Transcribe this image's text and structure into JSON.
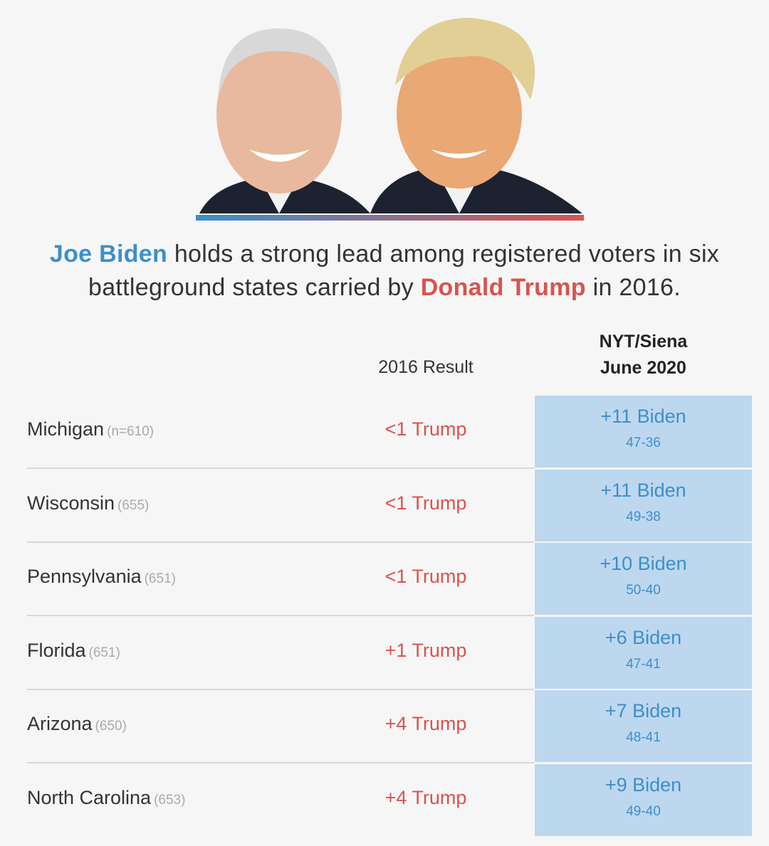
{
  "headline": {
    "biden": "Joe Biden",
    "text1": "holds a strong lead among registered voters in six battleground states carried by",
    "trump": "Donald Trump",
    "text2": "in 2016."
  },
  "table": {
    "columns": {
      "result": "2016 Result",
      "poll_line1": "NYT/Siena",
      "poll_line2": "June 2020"
    },
    "rows": [
      {
        "state": "Michigan",
        "sample": "(n=610)",
        "result": "<1 Trump",
        "poll": "+11 Biden",
        "detail": "47-36"
      },
      {
        "state": "Wisconsin",
        "sample": "(655)",
        "result": "<1 Trump",
        "poll": "+11 Biden",
        "detail": "49-38"
      },
      {
        "state": "Pennsylvania",
        "sample": "(651)",
        "result": "<1 Trump",
        "poll": "+10 Biden",
        "detail": "50-40"
      },
      {
        "state": "Florida",
        "sample": "(651)",
        "result": "+1 Trump",
        "poll": "+6 Biden",
        "detail": "47-41"
      },
      {
        "state": "Arizona",
        "sample": "(650)",
        "result": "+4 Trump",
        "poll": "+7 Biden",
        "detail": "48-41"
      },
      {
        "state": "North Carolina",
        "sample": "(653)",
        "result": "+4 Trump",
        "poll": "+9 Biden",
        "detail": "49-40"
      }
    ]
  }
}
